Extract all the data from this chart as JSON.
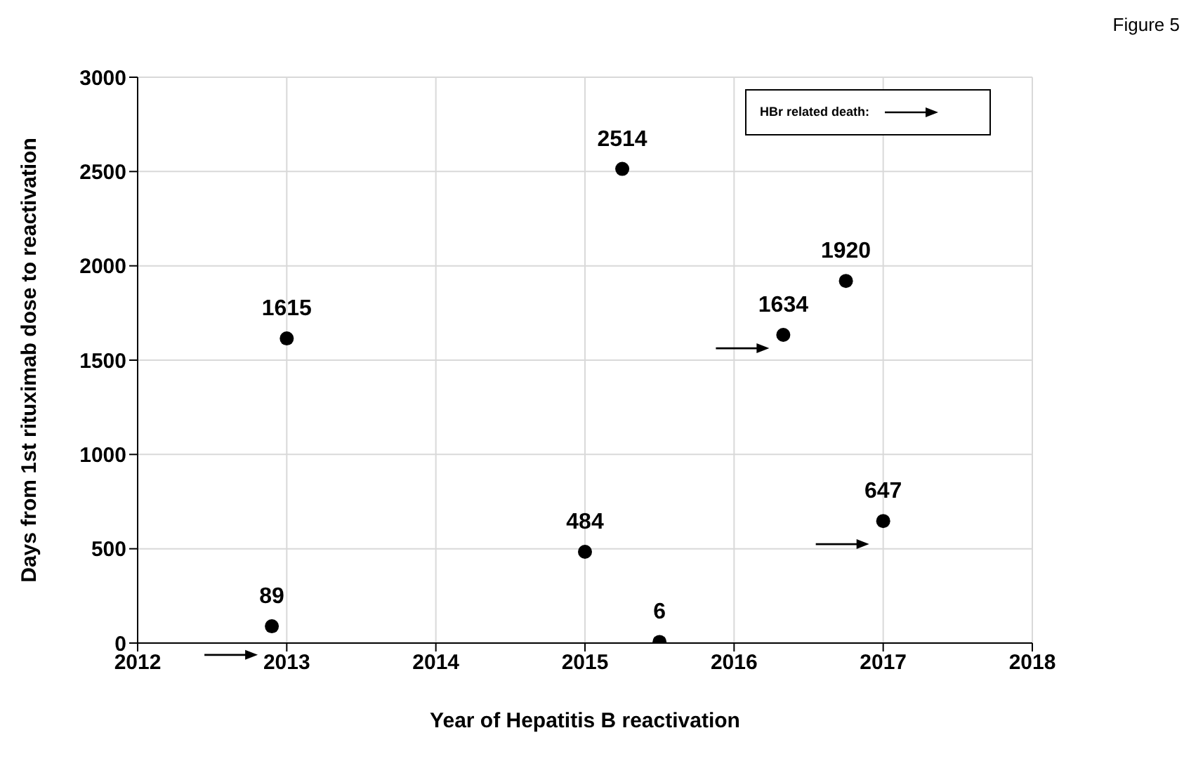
{
  "chart_data": {
    "type": "scatter",
    "xlabel": "Year of Hepatitis B reactivation",
    "ylabel": "Days from 1st rituximab dose to reactivation",
    "x": [
      2012.9,
      2013.0,
      2015.0,
      2015.25,
      2015.5,
      2016.33,
      2016.75,
      2017.0
    ],
    "series": [
      {
        "color": "#000000",
        "values": [
          89,
          1615,
          484,
          2514,
          6,
          1634,
          1920,
          647
        ]
      }
    ],
    "xlim": [
      2012,
      2018
    ],
    "xticks": [
      2012,
      2013,
      2014,
      2015,
      2016,
      2017,
      2018
    ],
    "ylim": [
      0,
      3000
    ],
    "yticks": [
      0,
      500,
      1000,
      1500,
      2000,
      2500,
      3000
    ],
    "grid": true,
    "marker": "circle",
    "data_labels": true,
    "annotations": [
      "Figure 5",
      "HBr related death:"
    ]
  }
}
